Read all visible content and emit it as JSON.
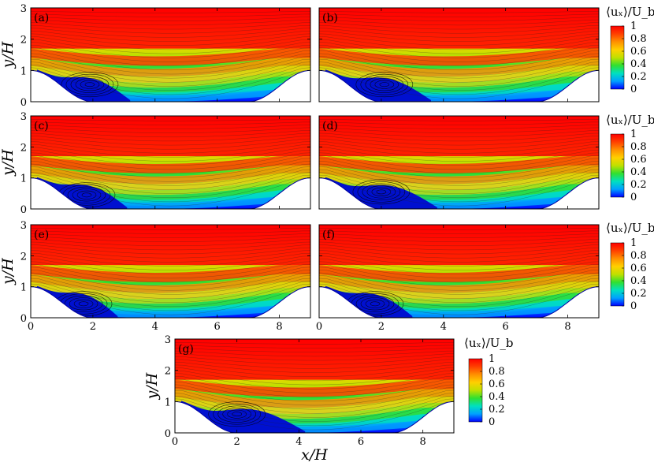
{
  "chart_data": {
    "type": "contour",
    "colorbar": {
      "title": "⟨uₓ⟩/U_b",
      "ticks": [
        "1",
        "0.8",
        "0.6",
        "0.4",
        "0.2",
        "0"
      ],
      "range": [
        0,
        1
      ],
      "colors": [
        "#0000ff",
        "#00a0ff",
        "#00e0c0",
        "#30e030",
        "#c0e000",
        "#ffd000",
        "#ff9000",
        "#ff4000",
        "#ff0000"
      ]
    },
    "xlabel": "x/H",
    "ylabel": "y/H",
    "xlim": [
      0,
      9
    ],
    "ylim": [
      0,
      3
    ],
    "xticks": [
      "0",
      "2",
      "4",
      "6",
      "8"
    ],
    "yticks": [
      "0",
      "1",
      "2",
      "3"
    ],
    "panels": [
      {
        "label": "(a)",
        "vortex_center": [
          1.9,
          0.55
        ],
        "bubble_length": 3.0
      },
      {
        "label": "(b)",
        "vortex_center": [
          2.1,
          0.55
        ],
        "bubble_length": 3.4
      },
      {
        "label": "(c)",
        "vortex_center": [
          1.8,
          0.45
        ],
        "bubble_length": 2.9
      },
      {
        "label": "(d)",
        "vortex_center": [
          2.0,
          0.55
        ],
        "bubble_length": 3.6
      },
      {
        "label": "(e)",
        "vortex_center": [
          1.7,
          0.45
        ],
        "bubble_length": 2.6
      },
      {
        "label": "(f)",
        "vortex_center": [
          1.8,
          0.45
        ],
        "bubble_length": 2.8
      },
      {
        "label": "(g)",
        "vortex_center": [
          2.0,
          0.6
        ],
        "bubble_length": 4.0
      }
    ]
  }
}
